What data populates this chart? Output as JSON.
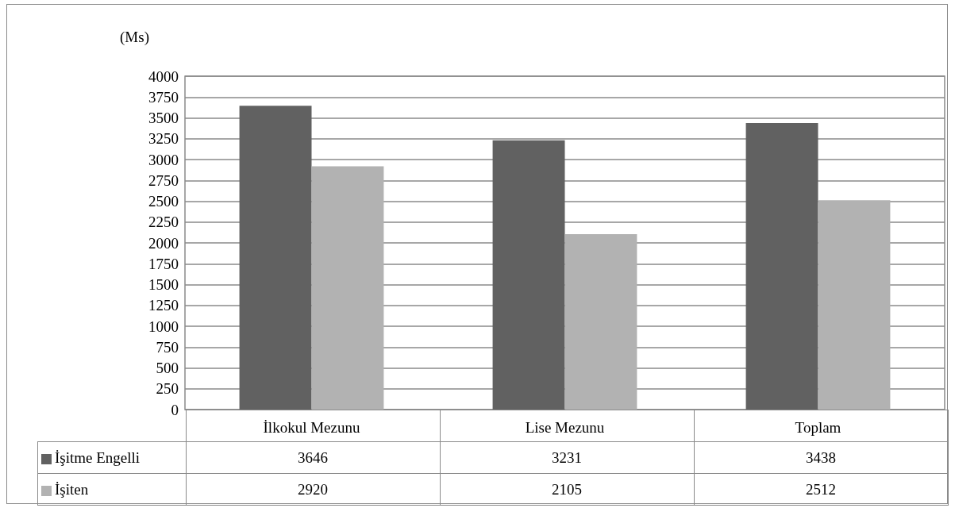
{
  "chart_data": {
    "type": "bar",
    "ylabel": "(Ms)",
    "categories": [
      "İlkokul Mezunu",
      "Lise Mezunu",
      "Toplam"
    ],
    "series": [
      {
        "name": "İşitme Engelli",
        "color": "#616161",
        "values": [
          3646,
          3231,
          3438
        ]
      },
      {
        "name": "İşiten",
        "color": "#b2b2b2",
        "values": [
          2920,
          2105,
          2512
        ]
      }
    ],
    "ylim": [
      0,
      4000
    ],
    "yticks": [
      0,
      250,
      500,
      750,
      1000,
      1250,
      1500,
      1750,
      2000,
      2250,
      2500,
      2750,
      3000,
      3250,
      3500,
      3750,
      4000
    ],
    "grid": "y",
    "legend": "bottom",
    "data_labels": true
  }
}
